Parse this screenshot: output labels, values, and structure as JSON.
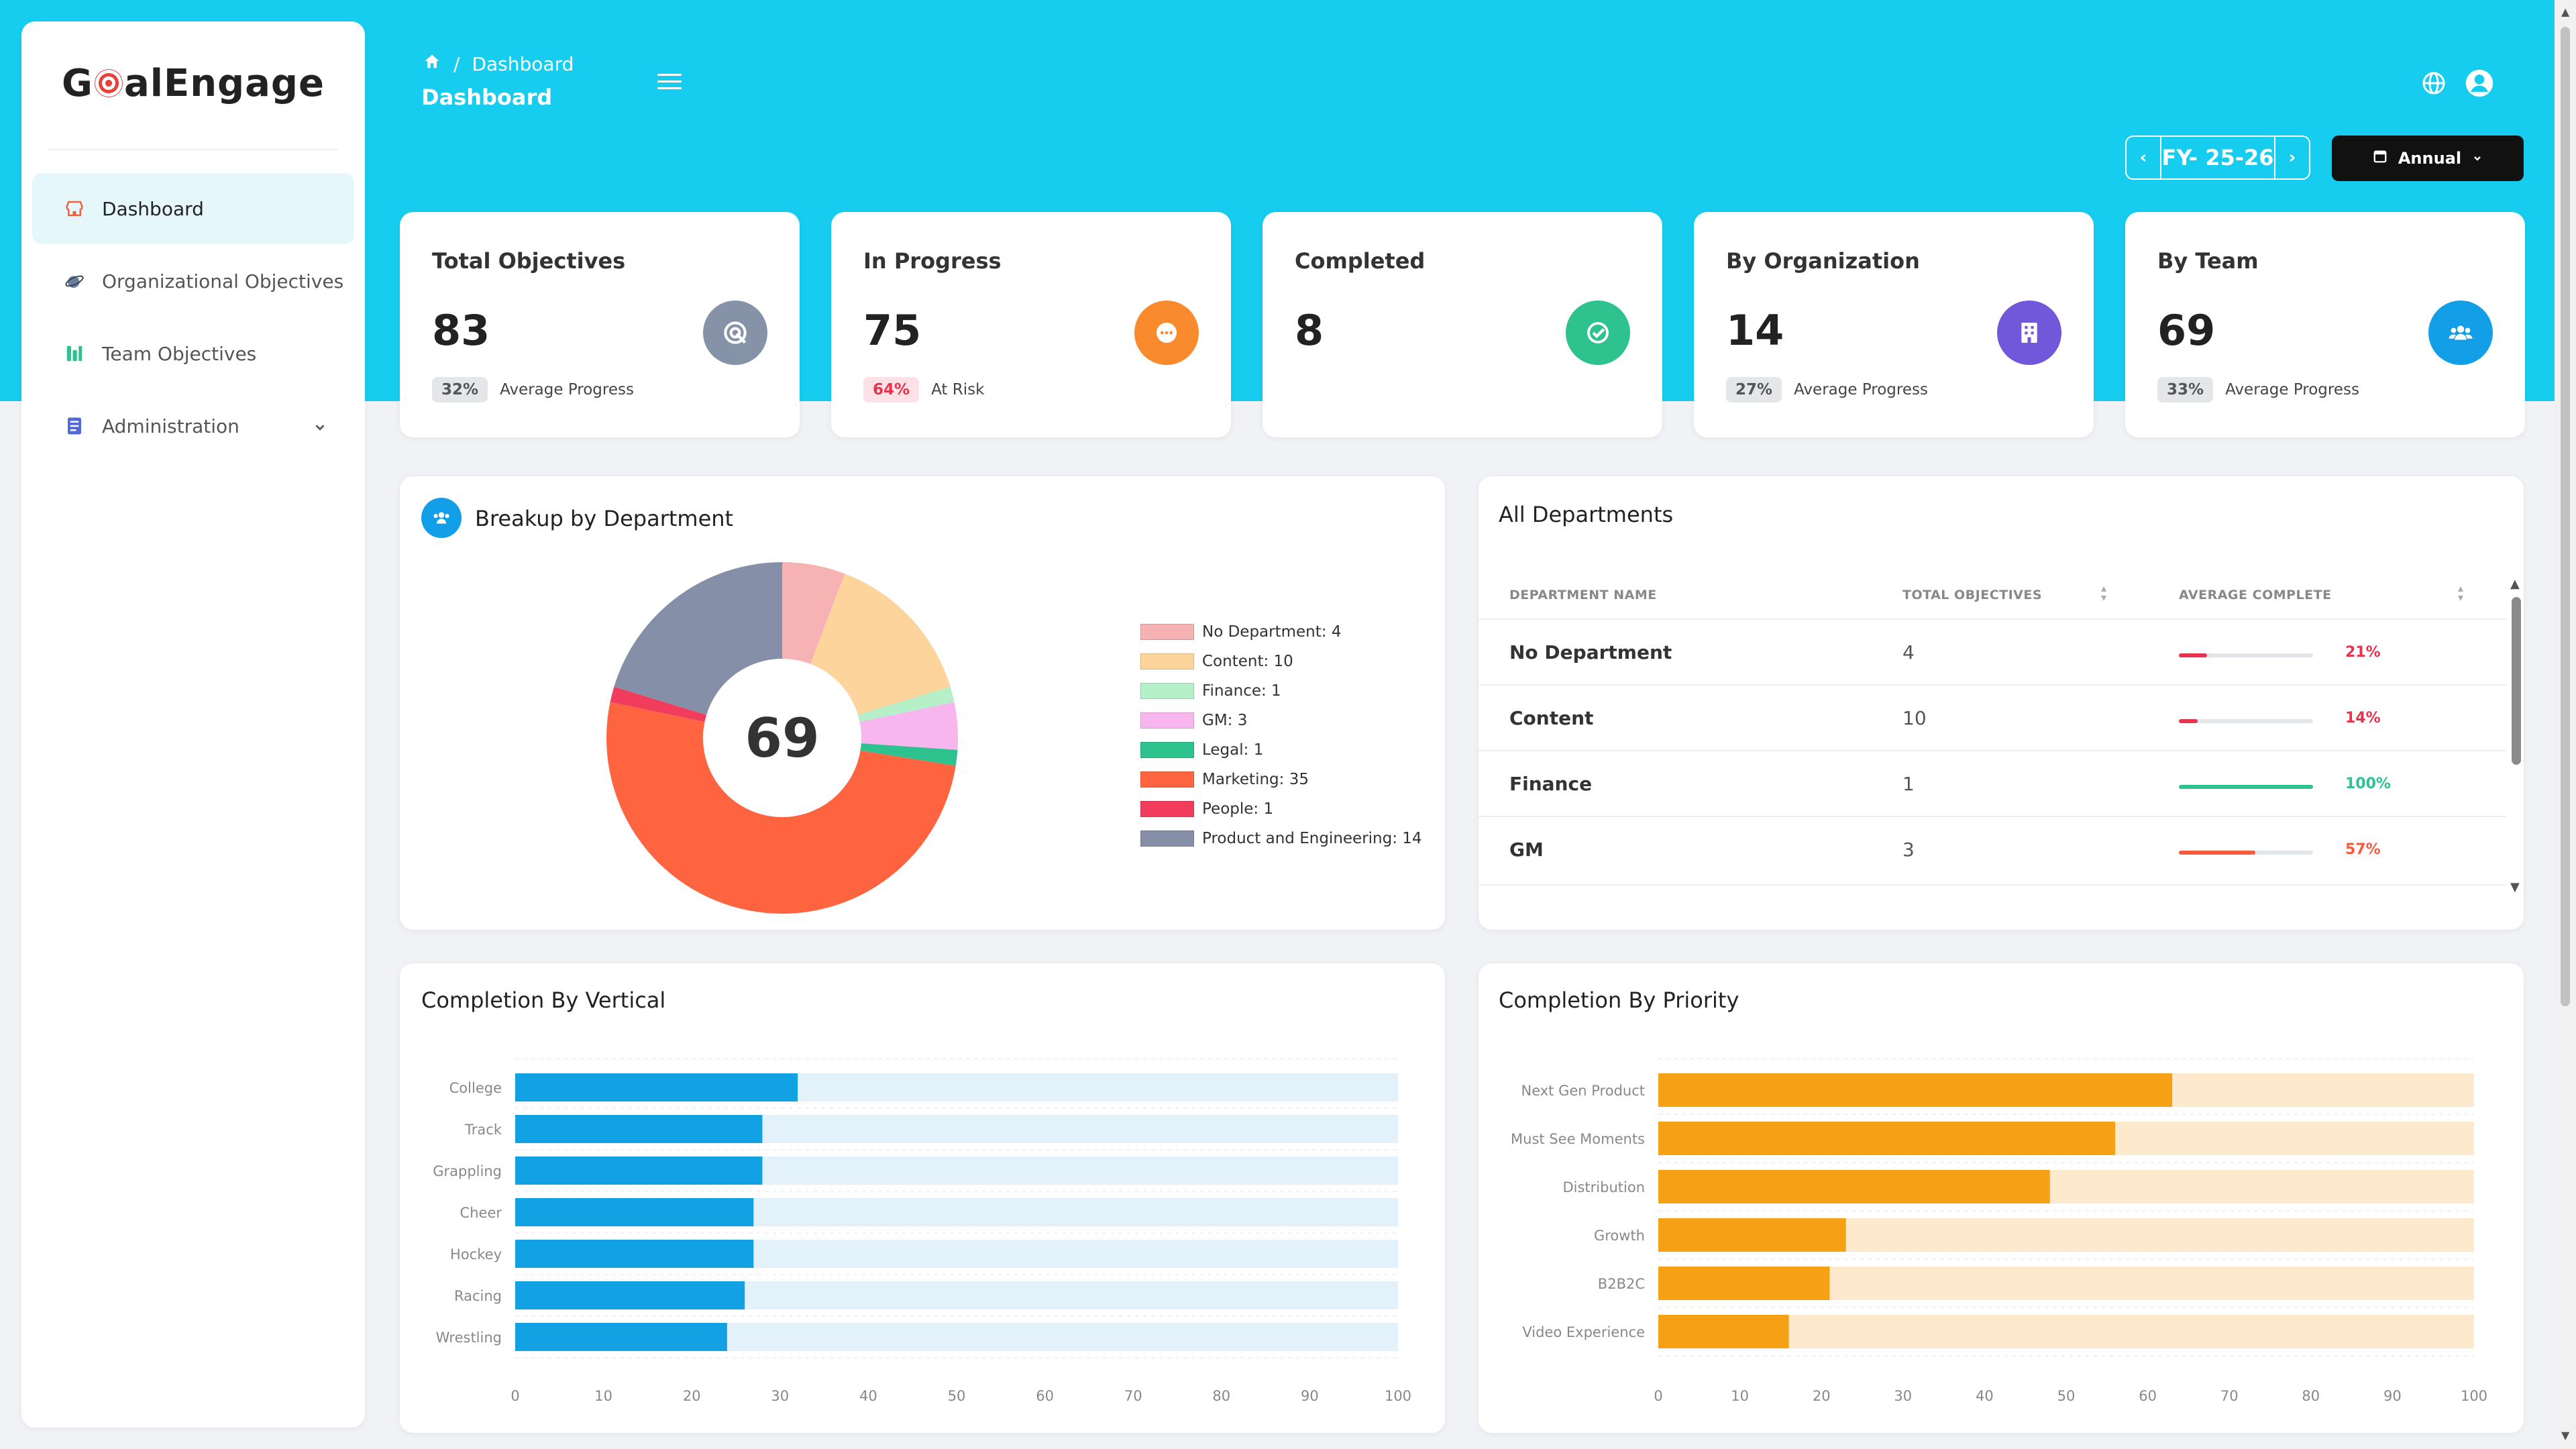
{
  "app": {
    "logo": "GoalEngage",
    "logo_before": "G",
    "logo_after": "alEngage"
  },
  "sidebar": {
    "items": [
      {
        "label": "Dashboard",
        "icon": "store-icon",
        "active": true
      },
      {
        "label": "Organizational Objectives",
        "icon": "globe-satellite-icon"
      },
      {
        "label": "Team Objectives",
        "icon": "team-bars-icon"
      },
      {
        "label": "Administration",
        "icon": "document-icon",
        "expandable": true
      }
    ]
  },
  "header": {
    "breadcrumb": "Dashboard",
    "title": "Dashboard",
    "fiscal_year": "FY- 25-26",
    "period": "Annual"
  },
  "stats": [
    {
      "label": "Total Objectives",
      "value": "83",
      "badge": "32%",
      "caption": "Average Progress",
      "icon": "target-icon",
      "color": "#8592a8",
      "badge_bg": "#e4e6ea",
      "badge_fg": "#555"
    },
    {
      "label": "In Progress",
      "value": "75",
      "badge": "64%",
      "caption": "At Risk",
      "icon": "dots-icon",
      "color": "#f98a2e",
      "badge_bg": "#fde1e6",
      "badge_fg": "#e8334e"
    },
    {
      "label": "Completed",
      "value": "8",
      "badge": "",
      "caption": "",
      "icon": "check-icon",
      "color": "#2ec28f",
      "badge_bg": "",
      "badge_fg": ""
    },
    {
      "label": "By Organization",
      "value": "14",
      "badge": "27%",
      "caption": "Average Progress",
      "icon": "building-icon",
      "color": "#7157d9",
      "badge_bg": "#e4e6ea",
      "badge_fg": "#555"
    },
    {
      "label": "By Team",
      "value": "69",
      "badge": "33%",
      "caption": "Average Progress",
      "icon": "team-icon",
      "color": "#139ee8",
      "badge_bg": "#e4e6ea",
      "badge_fg": "#555"
    }
  ],
  "breakup": {
    "title": "Breakup by Department",
    "center": "69"
  },
  "departments_table": {
    "title": "All Departments",
    "columns": [
      "DEPARTMENT NAME",
      "TOTAL OBJECTIVES",
      "AVERAGE COMPLETE"
    ],
    "rows": [
      {
        "name": "No Department",
        "total": "4",
        "percent": "21%",
        "value": 21,
        "color": "#e8334e"
      },
      {
        "name": "Content",
        "total": "10",
        "percent": "14%",
        "value": 14,
        "color": "#e8334e"
      },
      {
        "name": "Finance",
        "total": "1",
        "percent": "100%",
        "value": 100,
        "color": "#2ec28f"
      },
      {
        "name": "GM",
        "total": "3",
        "percent": "57%",
        "value": 57,
        "color": "#f85a3c"
      }
    ]
  },
  "chart_data": [
    {
      "type": "pie",
      "title": "Breakup by Department",
      "center_label": "69",
      "labels": [
        "No Department",
        "Content",
        "Finance",
        "GM",
        "Legal",
        "Marketing",
        "People",
        "Product and Engineering"
      ],
      "legend": [
        "No Department: 4",
        "Content: 10",
        "Finance: 1",
        "GM: 3",
        "Legal: 1",
        "Marketing: 35",
        "People: 1",
        "Product and Engineering: 14"
      ],
      "values": [
        4,
        10,
        1,
        3,
        1,
        35,
        1,
        14
      ],
      "colors": [
        "#f7b3b3",
        "#fdd49c",
        "#b6f0c8",
        "#f7b7ee",
        "#2ec28f",
        "#fe6440",
        "#f23c5e",
        "#8590a8"
      ]
    },
    {
      "type": "bar",
      "orientation": "horizontal",
      "title": "Completion By Vertical",
      "categories": [
        "College",
        "Track",
        "Grappling",
        "Cheer",
        "Hockey",
        "Racing",
        "Wrestling"
      ],
      "values": [
        32,
        28,
        28,
        27,
        27,
        26,
        24
      ],
      "xlim": [
        0,
        100
      ],
      "ticks": [
        "0",
        "10",
        "20",
        "30",
        "40",
        "50",
        "60",
        "70",
        "80",
        "90",
        "100"
      ],
      "color": "#12a2e3",
      "track": "#e3f1fb"
    },
    {
      "type": "bar",
      "orientation": "horizontal",
      "title": "Completion By Priority",
      "categories": [
        "Next Gen Product",
        "Must See Moments",
        "Distribution",
        "Growth",
        "B2B2C",
        "Video Experience"
      ],
      "values": [
        63,
        56,
        48,
        23,
        21,
        16
      ],
      "xlim": [
        0,
        100
      ],
      "ticks": [
        "0",
        "10",
        "20",
        "30",
        "40",
        "50",
        "60",
        "70",
        "80",
        "90",
        "100"
      ],
      "color": "#f6a016",
      "track": "#fde9cc"
    }
  ]
}
